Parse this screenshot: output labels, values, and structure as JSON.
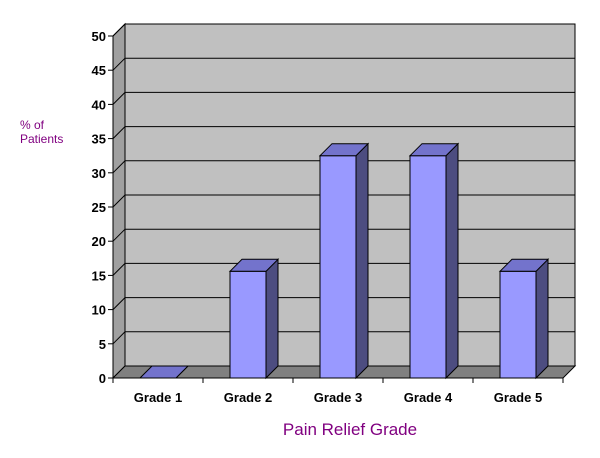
{
  "chart_data": {
    "type": "bar",
    "categories": [
      "Grade 1",
      "Grade 2",
      "Grade 3",
      "Grade 4",
      "Grade 5"
    ],
    "values": [
      0,
      15.6,
      32.5,
      32.5,
      15.6
    ],
    "title": "",
    "xlabel": "Pain Relief Grade",
    "ylabel": "% of Patients",
    "ylim": [
      0,
      50
    ],
    "yticks": [
      0,
      5,
      10,
      15,
      20,
      25,
      30,
      35,
      40,
      45,
      50
    ],
    "grid": true,
    "legend": "none",
    "bar_color": "#9999ff",
    "wall_color": "#c0c0c0",
    "label_color": "#800080"
  }
}
